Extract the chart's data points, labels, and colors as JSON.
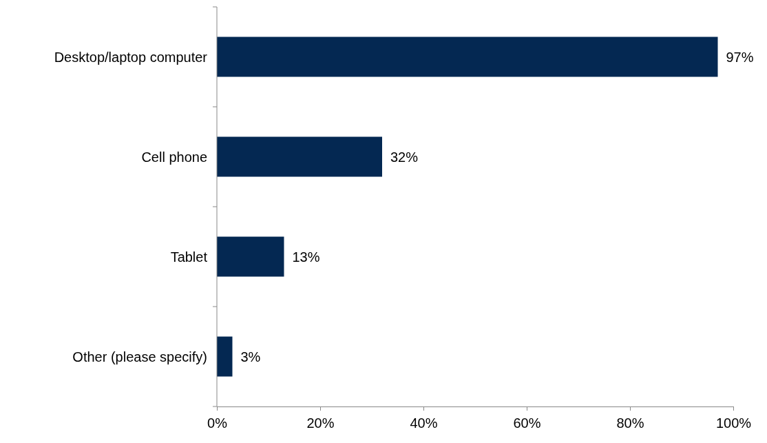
{
  "chart_data": {
    "type": "bar",
    "orientation": "horizontal",
    "categories": [
      "Desktop/laptop computer",
      "Cell phone",
      "Tablet",
      "Other (please specify)"
    ],
    "values": [
      97,
      32,
      13,
      3
    ],
    "value_labels": [
      "97%",
      "32%",
      "13%",
      "3%"
    ],
    "color": "#042852",
    "xlim": [
      0,
      100
    ],
    "xticks": [
      {
        "value": 0,
        "label": "0%"
      },
      {
        "value": 20,
        "label": "20%"
      },
      {
        "value": 40,
        "label": "40%"
      },
      {
        "value": 60,
        "label": "60%"
      },
      {
        "value": 80,
        "label": "80%"
      },
      {
        "value": 100,
        "label": "100%"
      }
    ],
    "grid": false
  }
}
